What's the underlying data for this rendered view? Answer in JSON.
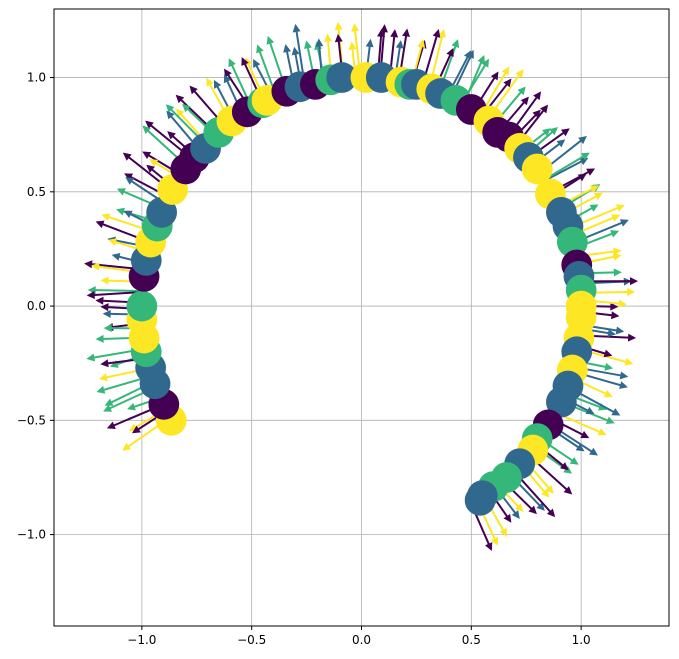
{
  "chart_data": {
    "type": "scatter",
    "title": "",
    "xlabel": "",
    "ylabel": "",
    "xlim": [
      -1.4,
      1.4
    ],
    "ylim": [
      -1.4,
      1.3
    ],
    "grid": true,
    "legend": "none",
    "xticks": [
      -1.0,
      -0.5,
      0.0,
      0.5,
      1.0
    ],
    "yticks": [
      -1.0,
      -0.5,
      0.0,
      0.5,
      1.0
    ],
    "xtick_labels": [
      "−1.0",
      "−0.5",
      "0.0",
      "0.5",
      "1.0"
    ],
    "ytick_labels": [
      "−1.0",
      "−0.5",
      "0.0",
      "0.5",
      "1.0"
    ],
    "arc": {
      "radius": 1.0,
      "start_angle_deg": -60,
      "end_angle_deg": 210
    },
    "palette": [
      "#440154",
      "#31688e",
      "#35b779",
      "#fde725"
    ],
    "points": [
      {
        "x": -0.866,
        "y": -0.5,
        "c": 3
      },
      {
        "x": -0.9,
        "y": -0.43,
        "c": 0
      },
      {
        "x": -0.94,
        "y": -0.34,
        "c": 1
      },
      {
        "x": -0.96,
        "y": -0.27,
        "c": 1
      },
      {
        "x": -0.98,
        "y": -0.2,
        "c": 2
      },
      {
        "x": -0.99,
        "y": -0.14,
        "c": 3
      },
      {
        "x": -1.0,
        "y": -0.06,
        "c": 3
      },
      {
        "x": -1.0,
        "y": 0.0,
        "c": 2
      },
      {
        "x": -0.99,
        "y": 0.13,
        "c": 0
      },
      {
        "x": -0.98,
        "y": 0.2,
        "c": 1
      },
      {
        "x": -0.96,
        "y": 0.28,
        "c": 3
      },
      {
        "x": -0.93,
        "y": 0.35,
        "c": 2
      },
      {
        "x": -0.91,
        "y": 0.41,
        "c": 1
      },
      {
        "x": -0.86,
        "y": 0.51,
        "c": 3
      },
      {
        "x": -0.8,
        "y": 0.6,
        "c": 0
      },
      {
        "x": -0.76,
        "y": 0.65,
        "c": 0
      },
      {
        "x": -0.71,
        "y": 0.69,
        "c": 1
      },
      {
        "x": -0.65,
        "y": 0.76,
        "c": 2
      },
      {
        "x": -0.59,
        "y": 0.81,
        "c": 3
      },
      {
        "x": -0.52,
        "y": 0.85,
        "c": 0
      },
      {
        "x": -0.45,
        "y": 0.89,
        "c": 2
      },
      {
        "x": -0.43,
        "y": 0.9,
        "c": 3
      },
      {
        "x": -0.34,
        "y": 0.94,
        "c": 0
      },
      {
        "x": -0.28,
        "y": 0.96,
        "c": 1
      },
      {
        "x": -0.21,
        "y": 0.97,
        "c": 0
      },
      {
        "x": -0.14,
        "y": 0.99,
        "c": 2
      },
      {
        "x": -0.09,
        "y": 1.0,
        "c": 1
      },
      {
        "x": 0.02,
        "y": 1.0,
        "c": 3
      },
      {
        "x": 0.09,
        "y": 1.0,
        "c": 1
      },
      {
        "x": 0.18,
        "y": 0.98,
        "c": 3
      },
      {
        "x": 0.22,
        "y": 0.97,
        "c": 2
      },
      {
        "x": 0.25,
        "y": 0.97,
        "c": 1
      },
      {
        "x": 0.32,
        "y": 0.95,
        "c": 3
      },
      {
        "x": 0.36,
        "y": 0.93,
        "c": 1
      },
      {
        "x": 0.43,
        "y": 0.9,
        "c": 2
      },
      {
        "x": 0.5,
        "y": 0.86,
        "c": 0
      },
      {
        "x": 0.58,
        "y": 0.81,
        "c": 3
      },
      {
        "x": 0.62,
        "y": 0.76,
        "c": 0
      },
      {
        "x": 0.67,
        "y": 0.74,
        "c": 0
      },
      {
        "x": 0.72,
        "y": 0.69,
        "c": 3
      },
      {
        "x": 0.76,
        "y": 0.65,
        "c": 1
      },
      {
        "x": 0.8,
        "y": 0.6,
        "c": 3
      },
      {
        "x": 0.86,
        "y": 0.49,
        "c": 3
      },
      {
        "x": 0.91,
        "y": 0.41,
        "c": 1
      },
      {
        "x": 0.94,
        "y": 0.35,
        "c": 1
      },
      {
        "x": 0.96,
        "y": 0.28,
        "c": 2
      },
      {
        "x": 0.98,
        "y": 0.18,
        "c": 0
      },
      {
        "x": 0.99,
        "y": 0.13,
        "c": 1
      },
      {
        "x": 1.0,
        "y": 0.07,
        "c": 2
      },
      {
        "x": 1.0,
        "y": 0.0,
        "c": 3
      },
      {
        "x": 1.0,
        "y": -0.05,
        "c": 3
      },
      {
        "x": 0.99,
        "y": -0.14,
        "c": 3
      },
      {
        "x": 0.98,
        "y": -0.2,
        "c": 1
      },
      {
        "x": 0.96,
        "y": -0.28,
        "c": 3
      },
      {
        "x": 0.94,
        "y": -0.35,
        "c": 1
      },
      {
        "x": 0.91,
        "y": -0.42,
        "c": 1
      },
      {
        "x": 0.85,
        "y": -0.52,
        "c": 0
      },
      {
        "x": 0.8,
        "y": -0.58,
        "c": 2
      },
      {
        "x": 0.78,
        "y": -0.63,
        "c": 3
      },
      {
        "x": 0.72,
        "y": -0.69,
        "c": 1
      },
      {
        "x": 0.66,
        "y": -0.75,
        "c": 2
      },
      {
        "x": 0.6,
        "y": -0.79,
        "c": 2
      },
      {
        "x": 0.55,
        "y": -0.83,
        "c": 1
      },
      {
        "x": 0.54,
        "y": -0.85,
        "c": 1
      }
    ]
  }
}
